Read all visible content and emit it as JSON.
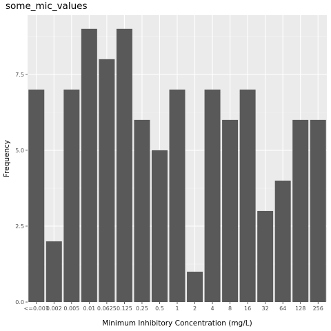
{
  "chart_data": {
    "type": "bar",
    "title": "some_mic_values",
    "xlabel": "Minimum Inhibitory Concentration (mg/L)",
    "ylabel": "Frequency",
    "categories": [
      "<=0.001",
      "0.002",
      "0.005",
      "0.01",
      "0.0625",
      "0.125",
      "0.25",
      "0.5",
      "1",
      "2",
      "4",
      "8",
      "16",
      "32",
      "64",
      "128",
      "256"
    ],
    "values": [
      7,
      2,
      7,
      9,
      8,
      9,
      6,
      5,
      7,
      1,
      7,
      6,
      7,
      3,
      4,
      6,
      6
    ],
    "y_ticks": [
      "0.0",
      "2.5",
      "5.0",
      "7.5"
    ],
    "ylim": [
      0,
      9.45
    ],
    "grid": true,
    "legend": "none",
    "colors": {
      "bar": "#595959",
      "panel": "#ebebeb",
      "grid_major": "#ffffff",
      "grid_minor": "#f5f5f5"
    }
  }
}
